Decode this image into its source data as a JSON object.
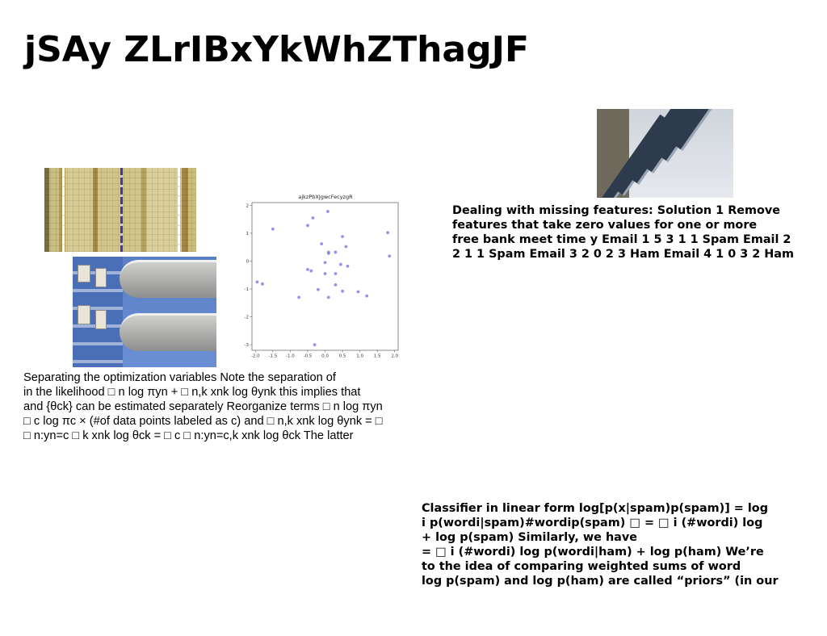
{
  "slide": {
    "title": "jSAy ZLrIBxYkWhZThagJF"
  },
  "images": {
    "textile": "textile-photo",
    "building": "building-balcony-photo",
    "facade": "building-facade-photo"
  },
  "chart_data": {
    "type": "scatter",
    "title": "ajkzPbXJgwcFecyzgR",
    "xlabel": "",
    "ylabel": "",
    "xlim": [
      -2.1,
      2.1
    ],
    "ylim": [
      -3.2,
      2.1
    ],
    "xticks": [
      "-2.0",
      "-1.5",
      "-1.0",
      "-0.5",
      "0.0",
      "0.5",
      "1.0",
      "1.5",
      "2.0"
    ],
    "yticks": [
      "2",
      "1",
      "0",
      "-1",
      "-2",
      "-3"
    ],
    "grid": false,
    "point_color": "#8080e8",
    "points": [
      [
        0.08,
        1.78
      ],
      [
        -0.35,
        1.55
      ],
      [
        -0.5,
        1.28
      ],
      [
        -1.5,
        1.15
      ],
      [
        0.5,
        0.88
      ],
      [
        1.8,
        1.02
      ],
      [
        1.85,
        0.18
      ],
      [
        0.6,
        0.52
      ],
      [
        -0.1,
        0.62
      ],
      [
        0.1,
        0.32
      ],
      [
        0.3,
        0.32
      ],
      [
        0.1,
        0.28
      ],
      [
        0.45,
        -0.12
      ],
      [
        0.65,
        -0.18
      ],
      [
        0.0,
        -0.05
      ],
      [
        -0.5,
        -0.3
      ],
      [
        -0.4,
        -0.35
      ],
      [
        0.0,
        -0.45
      ],
      [
        0.3,
        -0.45
      ],
      [
        -1.95,
        -0.75
      ],
      [
        -1.8,
        -0.82
      ],
      [
        0.3,
        -0.85
      ],
      [
        -0.2,
        -1.02
      ],
      [
        0.5,
        -1.08
      ],
      [
        0.95,
        -1.1
      ],
      [
        1.2,
        -1.25
      ],
      [
        0.1,
        -1.3
      ],
      [
        -0.75,
        -1.3
      ],
      [
        -0.3,
        -3.0
      ]
    ]
  },
  "text": {
    "separating": [
      "Separating the optimization variables Note the separation of",
      "in the likelihood □ n log πyn + □ n,k xnk log θynk this implies that",
      "and {θck} can be estimated separately Reorganize terms □ n log πyn",
      "□ c log πc × (#of data points labeled as c) and □ n,k xnk log θynk = □",
      "□ n:yn=c □ k xnk log θck = □ c □ n:yn=c,k xnk log θck The latter"
    ],
    "missing": [
      "Dealing with missing features: Solution 1 Remove",
      "features that take zero values for one or more",
      "free bank meet time y Email 1 5 3 1 1 Spam Email 2",
      "2 1 1 Spam Email 3 2 0 2 3 Ham Email 4 1 0 3 2 Ham"
    ],
    "classifier": [
      "Classifier in linear form log[p(x|spam)p(spam)] = log",
      "i p(wordi|spam)#wordip(spam) □ = □ i (#wordi) log",
      "+ log p(spam) Similarly, we have",
      "= □ i (#wordi) log p(wordi|ham) + log p(ham) We’re",
      "to the idea of comparing weighted sums of word",
      "log p(spam) and log p(ham) are called “priors” (in our"
    ]
  }
}
